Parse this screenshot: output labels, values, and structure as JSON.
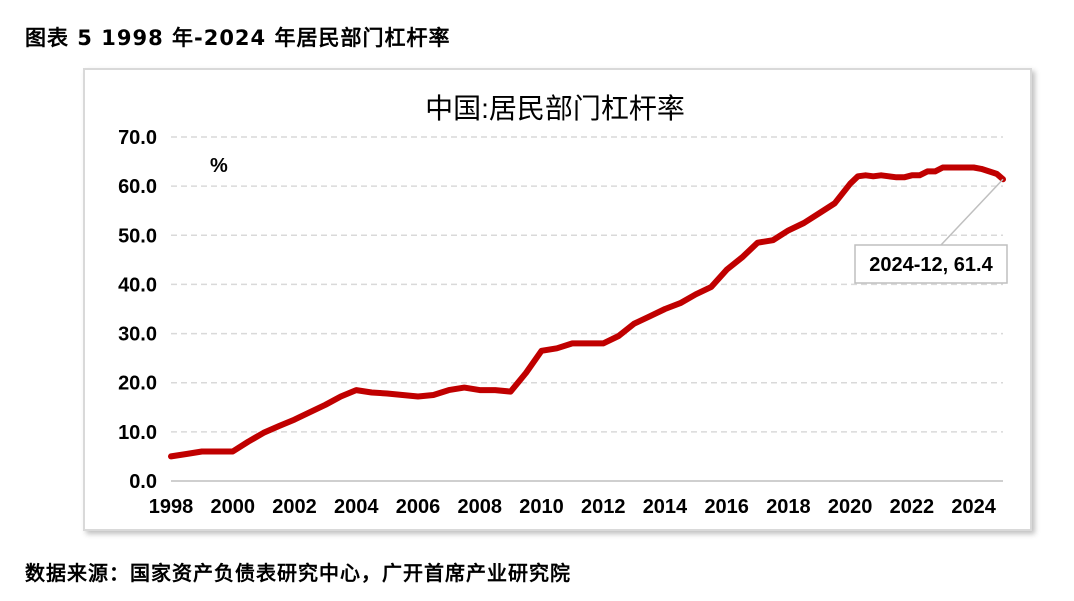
{
  "figure_caption": "图表 5 1998 年-2024 年居民部门杠杆率",
  "source_note": "数据来源：国家资产负债表研究中心，广开首席产业研究院",
  "colors": {
    "series": "#c00000",
    "grid": "#d9d9d9",
    "frame": "#d9d9d9"
  },
  "chart_data": {
    "type": "line",
    "title": "中国:居民部门杠杆率",
    "ylabel": "%",
    "xlabel": "",
    "ylim": [
      0,
      70
    ],
    "xlim": [
      1998,
      2024.95
    ],
    "yticks": [
      "0.0",
      "10.0",
      "20.0",
      "30.0",
      "40.0",
      "50.0",
      "60.0",
      "70.0"
    ],
    "xticks": [
      "1998",
      "2000",
      "2002",
      "2004",
      "2006",
      "2008",
      "2010",
      "2012",
      "2014",
      "2016",
      "2018",
      "2020",
      "2022",
      "2024"
    ],
    "grid": true,
    "annotation": {
      "text": "2024-12, 61.4",
      "x": 2024.95,
      "y": 61.4
    },
    "series": [
      {
        "x": [
          1998,
          1998.5,
          1999,
          1999.5,
          2000,
          2000.5,
          2001,
          2001.5,
          2002,
          2002.5,
          2003,
          2003.5,
          2004,
          2004.5,
          2005,
          2005.5,
          2006,
          2006.5,
          2007,
          2007.5,
          2008,
          2008.5,
          2009,
          2009.5,
          2010,
          2010.5,
          2011,
          2011.5,
          2012,
          2012.5,
          2013,
          2013.5,
          2014,
          2014.5,
          2015,
          2015.5,
          2016,
          2016.5,
          2017,
          2017.5,
          2018,
          2018.5,
          2019,
          2019.5,
          2020,
          2020.25,
          2020.5,
          2020.75,
          2021,
          2021.25,
          2021.5,
          2021.75,
          2022,
          2022.25,
          2022.5,
          2022.75,
          2023,
          2023.25,
          2023.5,
          2023.75,
          2024,
          2024.25,
          2024.5,
          2024.75,
          2024.95
        ],
        "values": [
          5.0,
          5.5,
          6.0,
          6.0,
          6.0,
          8.0,
          9.8,
          11.2,
          12.5,
          14.0,
          15.5,
          17.2,
          18.5,
          18.0,
          17.8,
          17.5,
          17.2,
          17.5,
          18.5,
          19.0,
          18.5,
          18.5,
          18.2,
          22.0,
          26.5,
          27.0,
          28.0,
          28.0,
          28.0,
          29.5,
          32.0,
          33.5,
          35.0,
          36.2,
          38.0,
          39.5,
          43.0,
          45.5,
          48.5,
          49.0,
          51.0,
          52.5,
          54.5,
          56.5,
          60.5,
          62.0,
          62.2,
          62.0,
          62.2,
          62.0,
          61.8,
          61.8,
          62.2,
          62.2,
          63.0,
          63.0,
          63.8,
          63.8,
          63.8,
          63.8,
          63.8,
          63.5,
          63.0,
          62.5,
          61.4
        ]
      }
    ]
  }
}
